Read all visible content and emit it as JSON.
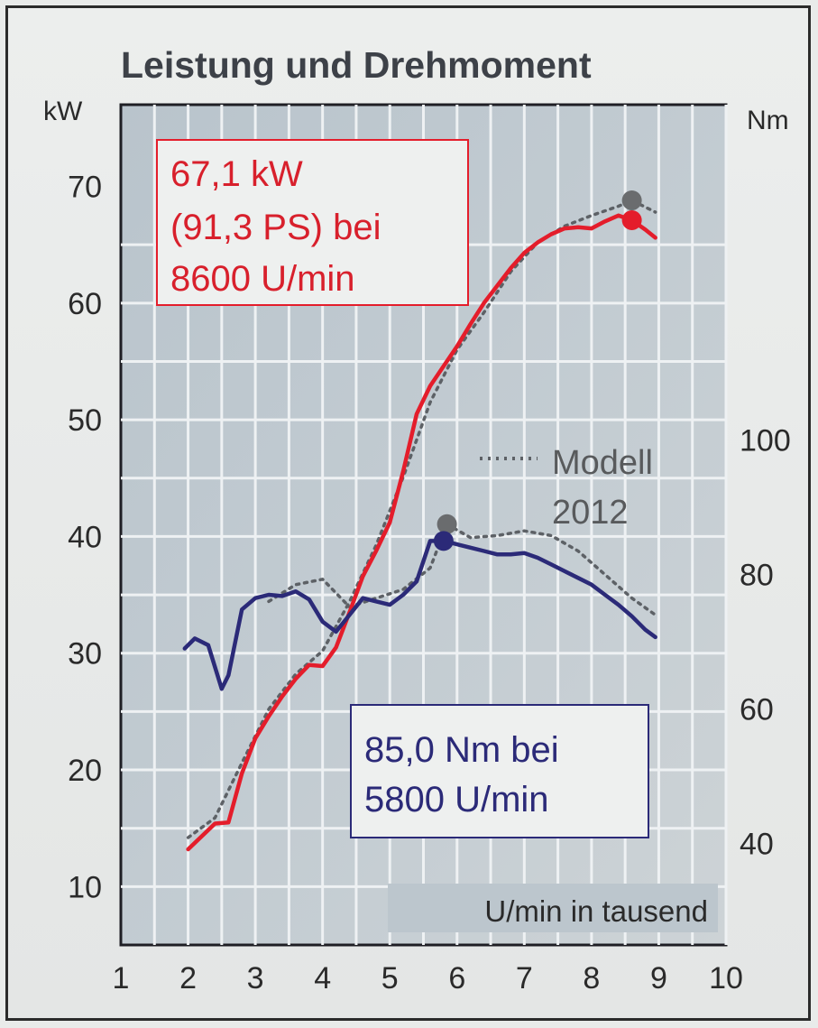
{
  "chart_data": {
    "type": "line",
    "title": "Leistung und Drehmoment",
    "xlabel": "U/min in tausend",
    "ylabel_left": "kW",
    "ylabel_right": "Nm",
    "xlim": [
      1,
      10
    ],
    "ylim_left": [
      5,
      77
    ],
    "ylim_right": [
      24.9,
      149.9
    ],
    "x_ticks": [
      "1",
      "2",
      "3",
      "4",
      "5",
      "6",
      "7",
      "8",
      "9",
      "10"
    ],
    "y_ticks_left": [
      "10",
      "20",
      "30",
      "40",
      "50",
      "60",
      "70"
    ],
    "y_ticks_right": [
      "40",
      "60",
      "80",
      "100"
    ],
    "grid": true,
    "series": [
      {
        "name": "",
        "axis": "left",
        "color": "#e41d2b",
        "style": "solid",
        "x": [
          2.0,
          2.2,
          2.4,
          2.6,
          2.8,
          3.0,
          3.2,
          3.4,
          3.6,
          3.8,
          4.0,
          4.2,
          4.4,
          4.6,
          4.8,
          5.0,
          5.2,
          5.4,
          5.6,
          5.8,
          6.0,
          6.2,
          6.4,
          6.6,
          6.8,
          7.0,
          7.2,
          7.4,
          7.6,
          7.8,
          8.0,
          8.2,
          8.4,
          8.6,
          8.8,
          8.95
        ],
        "y": [
          13.2,
          14.3,
          15.4,
          15.5,
          19.7,
          22.7,
          24.6,
          26.3,
          27.8,
          29.0,
          28.9,
          30.5,
          33.5,
          36.6,
          38.8,
          41.2,
          45.6,
          50.5,
          52.9,
          54.6,
          56.3,
          58.2,
          60.0,
          61.5,
          63.0,
          64.3,
          65.2,
          65.9,
          66.4,
          66.5,
          66.4,
          67.0,
          67.5,
          67.1,
          66.3,
          65.6
        ]
      },
      {
        "name": "Modell 2012",
        "axis": "left",
        "color": "#5d6166",
        "style": "dotted",
        "x": [
          2.0,
          2.4,
          2.8,
          3.2,
          3.6,
          4.0,
          4.4,
          4.8,
          5.2,
          5.6,
          6.0,
          6.4,
          6.8,
          7.2,
          7.6,
          8.0,
          8.4,
          8.6,
          8.95
        ],
        "y": [
          14.2,
          15.9,
          20.6,
          25.2,
          28.2,
          30.2,
          34.4,
          39.3,
          45.1,
          51.5,
          56.0,
          59.2,
          62.7,
          65.2,
          66.6,
          67.5,
          68.3,
          68.8,
          67.8
        ]
      },
      {
        "name": "",
        "axis": "right",
        "color": "#2b2a78",
        "style": "solid",
        "x": [
          1.95,
          2.1,
          2.3,
          2.5,
          2.6,
          2.8,
          3.0,
          3.2,
          3.4,
          3.6,
          3.8,
          4.0,
          4.2,
          4.4,
          4.6,
          4.8,
          5.0,
          5.2,
          5.4,
          5.6,
          5.8,
          6.0,
          6.2,
          6.4,
          6.6,
          6.8,
          7.0,
          7.2,
          7.4,
          7.6,
          7.8,
          8.0,
          8.2,
          8.4,
          8.6,
          8.8,
          8.95
        ],
        "y": [
          69.0,
          70.5,
          69.5,
          63.0,
          65.0,
          74.8,
          76.5,
          77.0,
          76.8,
          77.5,
          76.3,
          73.0,
          71.5,
          74.0,
          76.5,
          76.0,
          75.5,
          77.0,
          79.0,
          85.0,
          85.0,
          84.5,
          84.0,
          83.5,
          83.0,
          83.0,
          83.2,
          82.5,
          81.5,
          80.5,
          79.5,
          78.5,
          77.0,
          75.5,
          73.8,
          71.8,
          70.7
        ]
      },
      {
        "name": "Modell 2012",
        "axis": "right",
        "color": "#5d6166",
        "style": "dotted",
        "x": [
          3.2,
          3.6,
          4.0,
          4.4,
          4.8,
          5.2,
          5.6,
          5.85,
          6.2,
          6.6,
          7.0,
          7.4,
          7.8,
          8.2,
          8.6,
          8.95
        ],
        "y": [
          76.0,
          78.5,
          79.3,
          75.2,
          76.5,
          77.8,
          81.0,
          87.5,
          85.5,
          85.8,
          86.5,
          85.8,
          83.5,
          80.0,
          76.5,
          74.0
        ]
      }
    ],
    "markers": [
      {
        "axis": "left",
        "x": 8.6,
        "y": 68.8,
        "color": "#6a6c6e"
      },
      {
        "axis": "left",
        "x": 8.6,
        "y": 67.1,
        "color": "#e41d2b"
      },
      {
        "axis": "right",
        "x": 5.85,
        "y": 87.5,
        "color": "#6a6c6e"
      },
      {
        "axis": "right",
        "x": 5.8,
        "y": 85.0,
        "color": "#2b2a78"
      }
    ],
    "annotations": {
      "power_peak": [
        "67,1 kW",
        "(91,3 PS) bei",
        "8600 U/min"
      ],
      "torque_peak": [
        "85,0 Nm bei",
        "5800 U/min"
      ],
      "legend_line1": "Modell",
      "legend_line2": "2012"
    }
  }
}
